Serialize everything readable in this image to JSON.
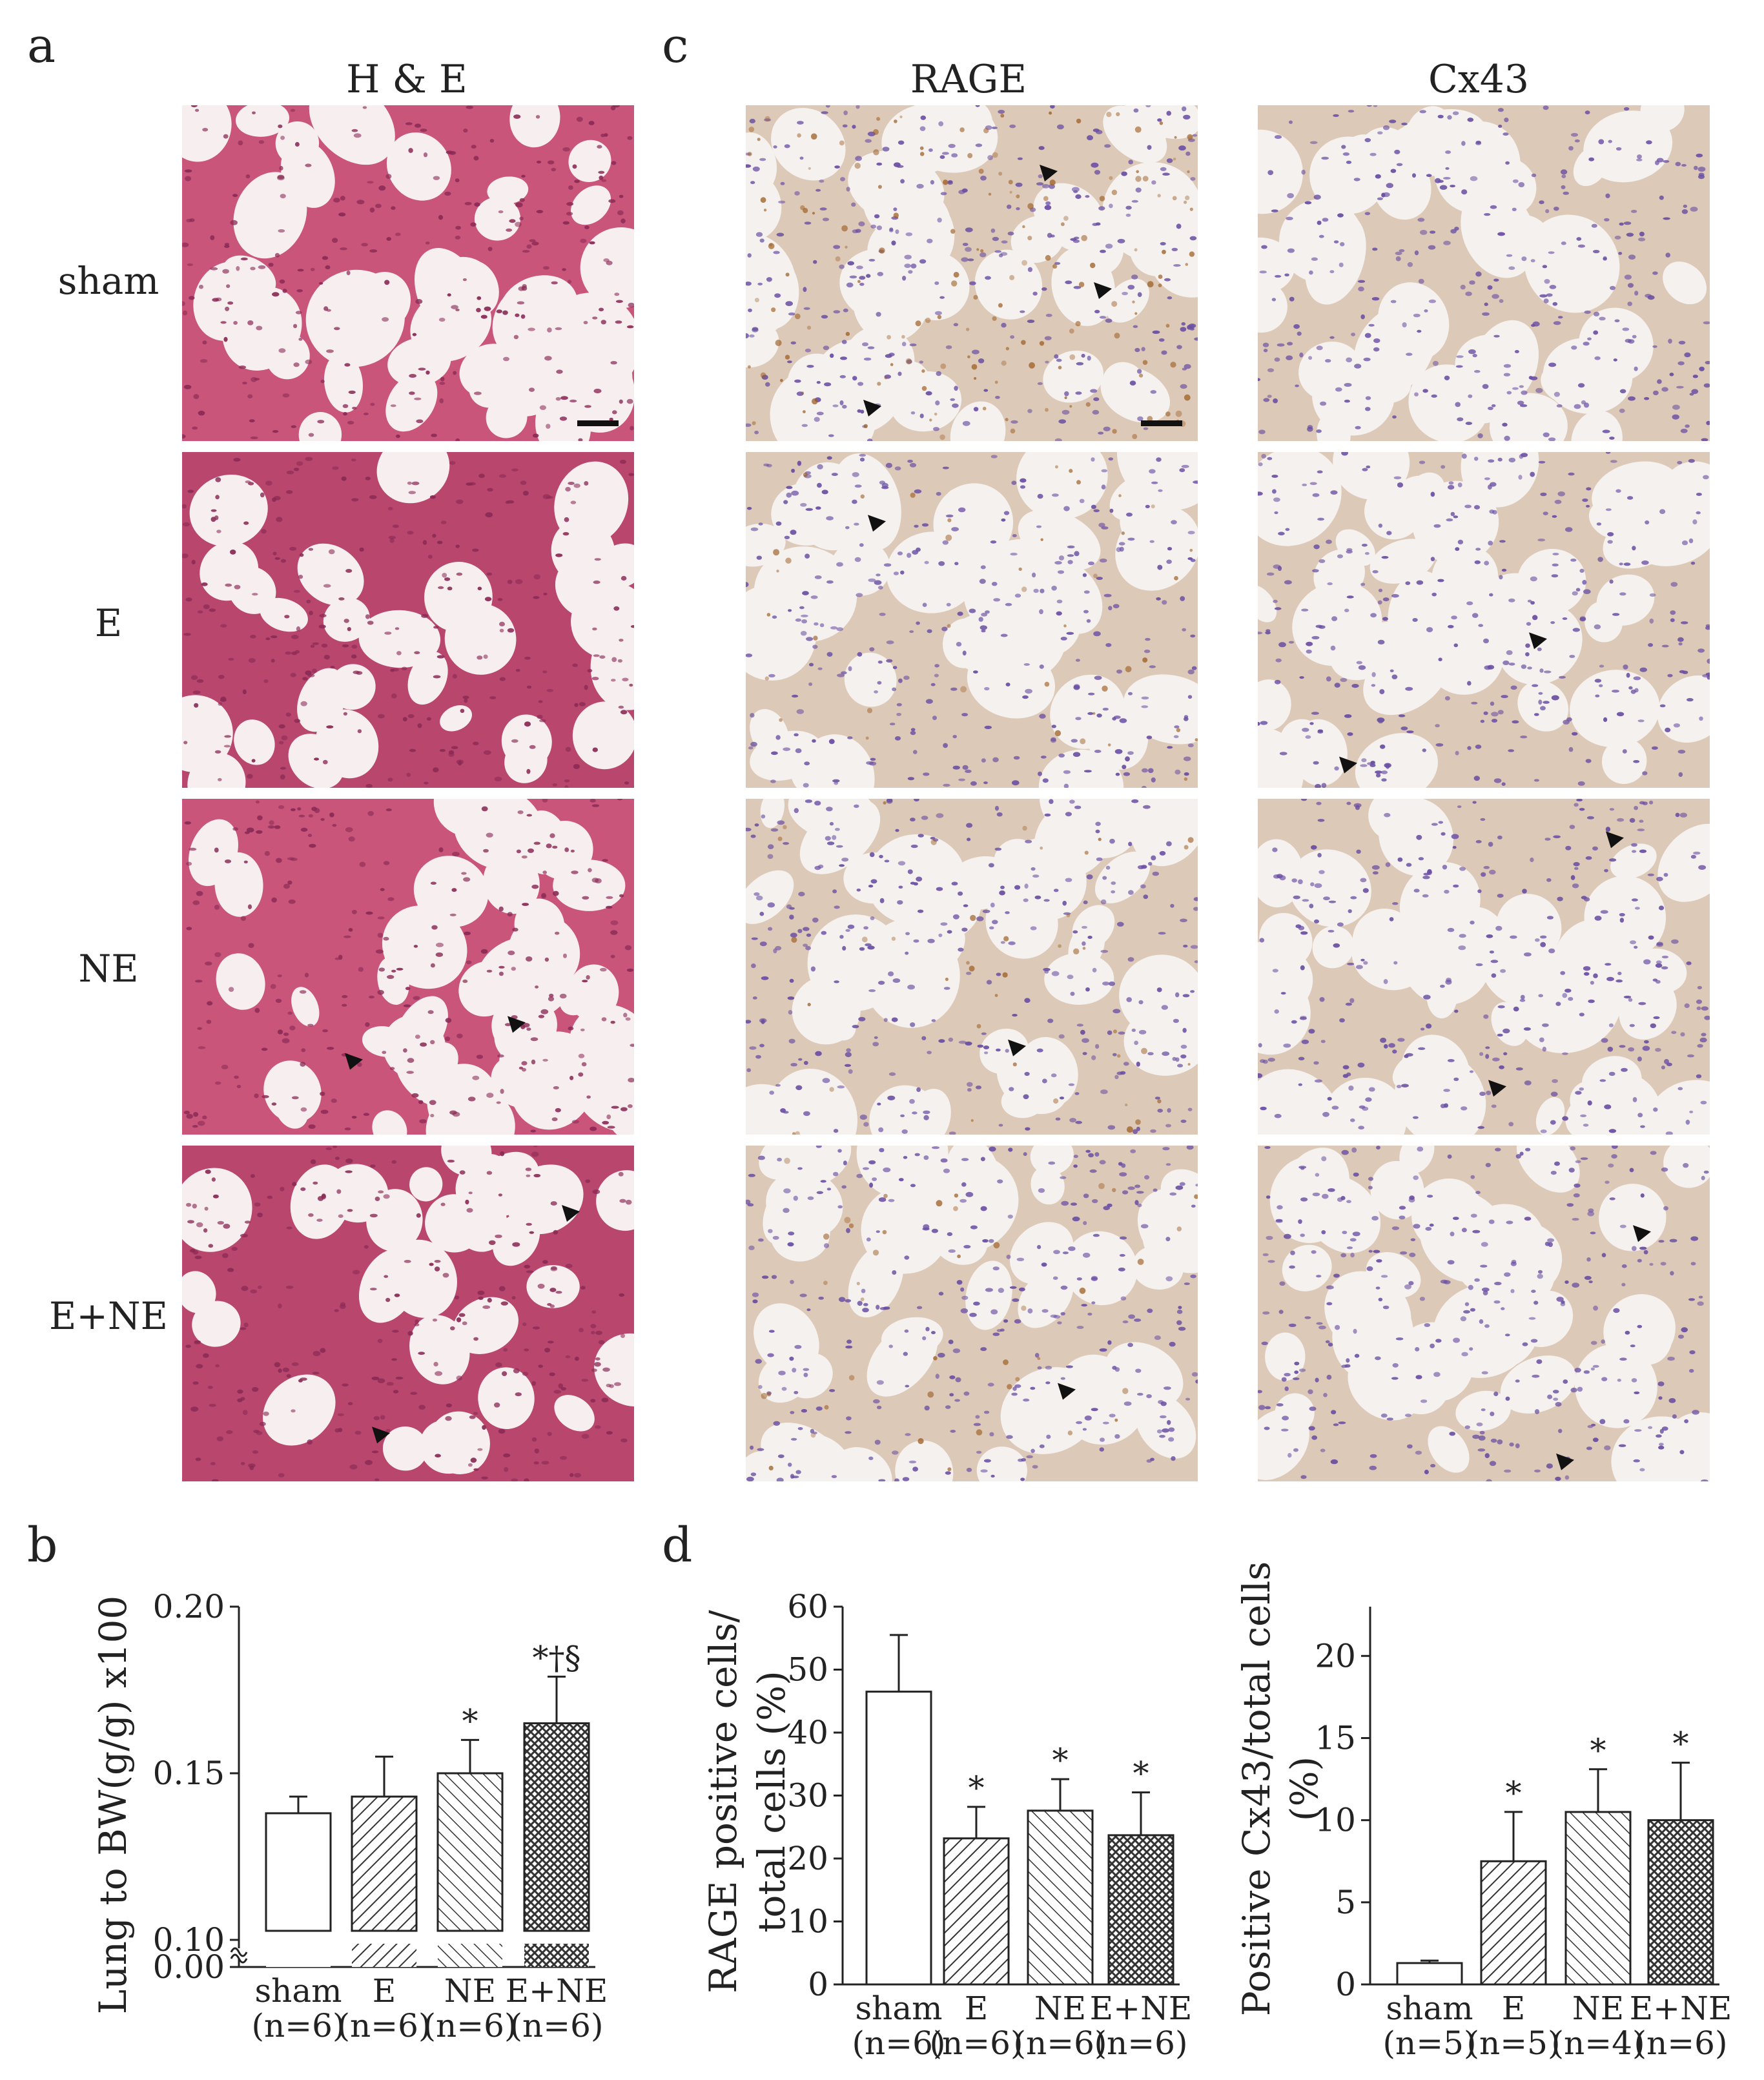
{
  "panels": {
    "a": "a",
    "b": "b",
    "c": "c",
    "d": "d"
  },
  "columns": {
    "he": "H & E",
    "rage": "RAGE",
    "cx43": "Cx43"
  },
  "rows": [
    "sham",
    "E",
    "NE",
    "E+NE"
  ],
  "colors": {
    "he_bg": "#f7eef0",
    "he_tissue": "#c9557a",
    "he_nuclei": "#8a2a55",
    "ihc_bg": "#f4f1ef",
    "ihc_tissue": "#ddc9b7",
    "ihc_nuclei": "#6a4fa3",
    "ihc_brown": "#9b5a1e",
    "axis": "#222222"
  },
  "chart_data": [
    {
      "id": "b",
      "type": "bar",
      "ylabel": "Lung to BW(g/g) x100",
      "axis_break": true,
      "yticks": [
        "0.00",
        "0.10",
        "0.15",
        "0.20"
      ],
      "ylim": [
        0.1,
        0.2
      ],
      "categories": [
        "sham",
        "E",
        "NE",
        "E+NE"
      ],
      "ns": [
        "(n=6)",
        "(n=6)",
        "(n=6)",
        "(n=6)"
      ],
      "values": [
        0.138,
        0.143,
        0.15,
        0.165
      ],
      "errors": [
        0.005,
        0.012,
        0.01,
        0.014
      ],
      "annotations": [
        "",
        "",
        "*",
        "*†§"
      ],
      "patterns": [
        "none",
        "diag-right",
        "diag-left",
        "cross"
      ]
    },
    {
      "id": "d1",
      "type": "bar",
      "ylabel": [
        "RAGE positive cells/",
        "total cells (%)"
      ],
      "yticks": [
        "0",
        "10",
        "20",
        "30",
        "40",
        "50",
        "60"
      ],
      "ylim": [
        0,
        60
      ],
      "categories": [
        "sham",
        "E",
        "NE",
        "E+NE"
      ],
      "ns": [
        "(n=6)",
        "(n=6)",
        "(n=6)",
        "(n=6)"
      ],
      "values": [
        46.5,
        23.2,
        27.6,
        23.7
      ],
      "errors": [
        9.0,
        5.0,
        5.0,
        6.8
      ],
      "annotations": [
        "",
        "*",
        "*",
        "*"
      ],
      "patterns": [
        "none",
        "diag-right",
        "diag-left",
        "cross"
      ]
    },
    {
      "id": "d2",
      "type": "bar",
      "ylabel": [
        "Positive Cx43/total cells",
        "(%)"
      ],
      "yticks": [
        "0",
        "5",
        "10",
        "15",
        "20"
      ],
      "ylim": [
        0,
        23
      ],
      "categories": [
        "sham",
        "E",
        "NE",
        "E+NE"
      ],
      "ns": [
        "(n=5)",
        "(n=5)",
        "(n=4)",
        "(n=6)"
      ],
      "values": [
        1.3,
        7.5,
        10.5,
        10.0
      ],
      "errors": [
        0.15,
        3.0,
        2.6,
        3.5
      ],
      "annotations": [
        "",
        "*",
        "*",
        "*"
      ],
      "patterns": [
        "none",
        "diag-right",
        "diag-left",
        "cross"
      ]
    }
  ]
}
